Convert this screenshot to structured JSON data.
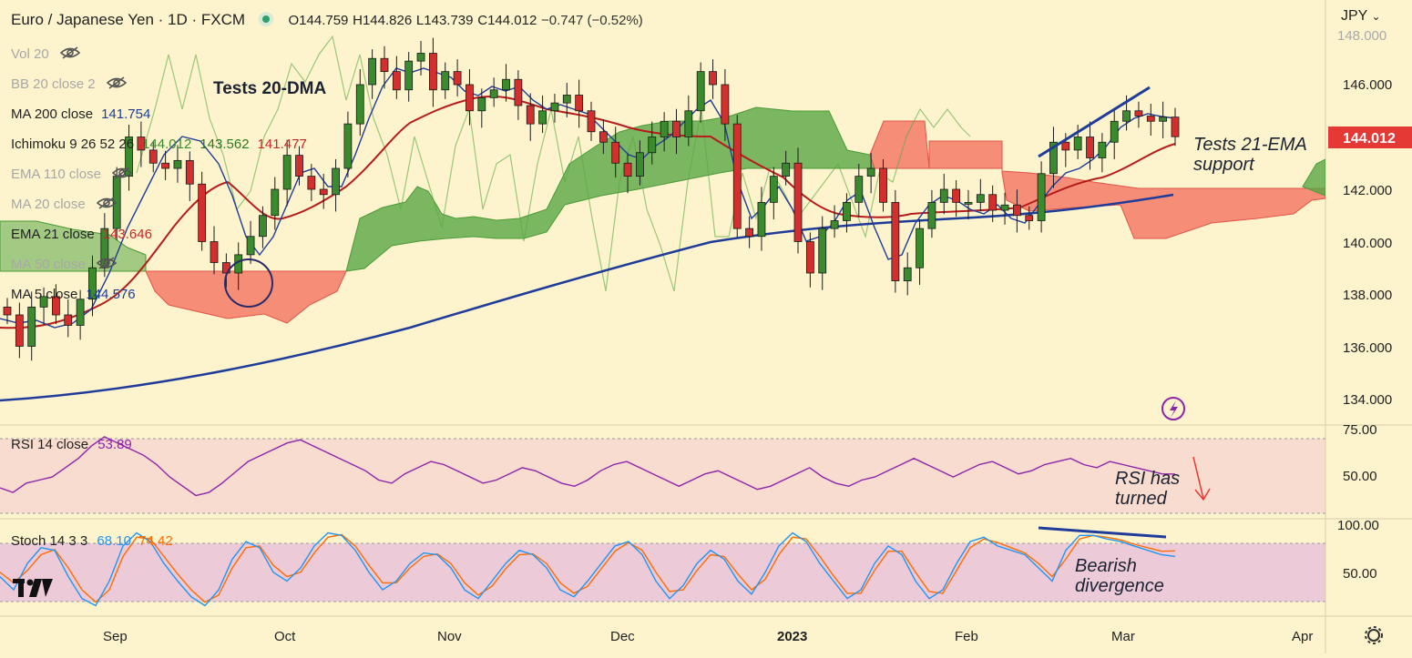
{
  "header": {
    "title": "Euro / Japanese Yen · 1D · FXCM",
    "open": "O144.759",
    "high": "H144.826",
    "low": "L143.739",
    "close": "C144.012",
    "change": "−0.747 (−0.52%)"
  },
  "currency": "JPY",
  "last_price": "144.012",
  "indicators": [
    {
      "label": "Vol 20",
      "values": [],
      "hidden": true
    },
    {
      "label": "BB 20 close 2",
      "values": [],
      "hidden": true
    },
    {
      "label": "MA 200 close",
      "values": [
        {
          "v": "141.754",
          "color": "#1f3c9a"
        }
      ],
      "hidden": false
    },
    {
      "label": "Ichimoku 9 26 52 26",
      "values": [
        {
          "v": "144.012",
          "color": "#3a8a2e"
        },
        {
          "v": "143.562",
          "color": "#2b7a22"
        },
        {
          "v": "141.477",
          "color": "#c62828"
        }
      ],
      "hidden": false
    },
    {
      "label": "EMA 110 close",
      "values": [],
      "hidden": true
    },
    {
      "label": "MA 20 close",
      "values": [],
      "hidden": true
    },
    {
      "label": "EMA 21 close",
      "values": [
        {
          "v": "143.646",
          "color": "#c62828"
        }
      ],
      "hidden": false
    },
    {
      "label": "MA 50 close",
      "values": [],
      "hidden": true
    },
    {
      "label": "MA 5 close",
      "values": [
        {
          "v": "144.576",
          "color": "#1f3c9a"
        }
      ],
      "hidden": false
    }
  ],
  "price_axis": {
    "ticks": [
      "146.000",
      "144.000",
      "142.000",
      "140.000",
      "138.000",
      "136.000",
      "134.000"
    ],
    "top_partial": "148.000"
  },
  "time_axis": {
    "labels": [
      "Sep",
      "Oct",
      "Nov",
      "Dec",
      "2023",
      "Feb",
      "Mar",
      "Apr"
    ]
  },
  "rsi": {
    "label": "RSI 14 close",
    "value": "53.89",
    "ticks": [
      "75.00",
      "50.00"
    ]
  },
  "stoch": {
    "label": "Stoch 14 3 3",
    "k": "68.10",
    "d": "74.42",
    "ticks": [
      "100.00",
      "50.00"
    ]
  },
  "annotations": {
    "dma": "Tests 20-DMA",
    "ema_line1": "Tests 21-EMA",
    "ema_line2": "support",
    "rsi_line1": "RSI has",
    "rsi_line2": "turned",
    "div_line1": "Bearish",
    "div_line2": "divergence"
  },
  "colors": {
    "background": "#fdf3cc",
    "up": "#3a8a2e",
    "down": "#d32f2f",
    "ma200": "#1f3c9a",
    "ema21": "#b71c1c",
    "rsi": "#8e24aa",
    "stoch_k": "#2196f3",
    "stoch_d": "#ff6d00",
    "cloud_bull": "#5aa845",
    "cloud_bear": "#f26b5b"
  },
  "chart_data": [
    {
      "type": "candlestick",
      "title": "Euro / Japanese Yen · 1D · FXCM",
      "ylim": [
        133,
        148.5
      ],
      "x_labels": [
        "Sep",
        "Oct",
        "Nov",
        "Dec",
        "2023",
        "Feb",
        "Mar",
        "Apr"
      ],
      "ohlc_approx_close": [
        137.2,
        136.0,
        137.5,
        137.9,
        137.2,
        136.8,
        137.8,
        139.0,
        140.5,
        142.5,
        144.0,
        143.5,
        143.0,
        142.8,
        143.1,
        142.2,
        140.0,
        139.2,
        138.8,
        139.5,
        140.2,
        141.0,
        142.0,
        143.3,
        142.5,
        142.0,
        141.8,
        142.8,
        144.5,
        146.0,
        147.0,
        146.5,
        145.8,
        146.9,
        147.2,
        145.8,
        146.5,
        146.0,
        145.0,
        145.5,
        145.8,
        146.2,
        145.2,
        144.5,
        145.0,
        145.3,
        145.6,
        145.0,
        144.2,
        143.8,
        143.0,
        142.5,
        143.4,
        144.0,
        144.6,
        144.0,
        145.0,
        146.5,
        146.0,
        144.5,
        140.5,
        140.2,
        141.5,
        142.5,
        143.0,
        140.0,
        138.8,
        140.5,
        140.8,
        141.5,
        142.5,
        142.8,
        141.5,
        138.5,
        139.0,
        140.5,
        141.5,
        142.0,
        141.5,
        141.5,
        141.8,
        141.2,
        141.4,
        141.0,
        140.8,
        142.6,
        143.8,
        143.5,
        144.0,
        143.2,
        143.8,
        144.6,
        145.0,
        144.8,
        144.6,
        144.76,
        144.01
      ],
      "series": [
        {
          "name": "MA 200 close",
          "last": 141.754
        },
        {
          "name": "EMA 21 close",
          "last": 143.646
        },
        {
          "name": "MA 5 close",
          "last": 144.576
        }
      ]
    },
    {
      "type": "line",
      "title": "RSI 14 close",
      "ylim": [
        25,
        85
      ],
      "ticks": [
        75,
        50
      ],
      "values": [
        45,
        42,
        48,
        50,
        52,
        58,
        64,
        72,
        78,
        74,
        70,
        66,
        60,
        52,
        46,
        40,
        42,
        48,
        55,
        62,
        66,
        70,
        74,
        76,
        72,
        68,
        64,
        60,
        56,
        50,
        48,
        54,
        58,
        62,
        60,
        56,
        52,
        48,
        50,
        54,
        58,
        56,
        52,
        48,
        46,
        50,
        56,
        60,
        62,
        58,
        54,
        50,
        46,
        50,
        54,
        56,
        52,
        48,
        44,
        46,
        50,
        54,
        58,
        52,
        48,
        46,
        50,
        52,
        56,
        60,
        64,
        60,
        56,
        52,
        56,
        60,
        62,
        58,
        54,
        56,
        60,
        62,
        64,
        60,
        58,
        62,
        60,
        58,
        56,
        54,
        53.89
      ]
    },
    {
      "type": "line",
      "title": "Stoch 14 3 3",
      "ylim": [
        0,
        110
      ],
      "ticks": [
        100,
        50
      ],
      "series": [
        {
          "name": "%K",
          "last": 68.1,
          "values": [
            45,
            30,
            60,
            78,
            75,
            45,
            20,
            12,
            40,
            80,
            95,
            85,
            60,
            40,
            22,
            12,
            30,
            65,
            85,
            78,
            50,
            40,
            55,
            80,
            95,
            92,
            75,
            50,
            30,
            40,
            60,
            72,
            70,
            55,
            30,
            20,
            40,
            60,
            75,
            70,
            55,
            30,
            22,
            40,
            60,
            80,
            85,
            70,
            40,
            20,
            35,
            60,
            75,
            65,
            40,
            25,
            50,
            80,
            95,
            85,
            60,
            40,
            20,
            30,
            60,
            80,
            70,
            40,
            20,
            30,
            60,
            85,
            90,
            80,
            75,
            70,
            55,
            40,
            75,
            92,
            92,
            88,
            85,
            80,
            75,
            70,
            68.1
          ]
        },
        {
          "name": "%D",
          "last": 74.42,
          "values": [
            50,
            38,
            52,
            70,
            76,
            55,
            30,
            16,
            30,
            68,
            90,
            88,
            68,
            48,
            30,
            16,
            24,
            55,
            78,
            80,
            58,
            45,
            50,
            72,
            90,
            93,
            80,
            58,
            38,
            38,
            55,
            68,
            71,
            60,
            38,
            24,
            34,
            54,
            70,
            71,
            60,
            38,
            26,
            34,
            54,
            74,
            84,
            75,
            50,
            28,
            30,
            52,
            70,
            68,
            48,
            30,
            42,
            70,
            90,
            88,
            68,
            46,
            26,
            26,
            52,
            74,
            74,
            50,
            28,
            26,
            52,
            78,
            88,
            84,
            78,
            72,
            60,
            45,
            65,
            88,
            92,
            90,
            87,
            82,
            78,
            74,
            74.42
          ]
        }
      ]
    }
  ]
}
